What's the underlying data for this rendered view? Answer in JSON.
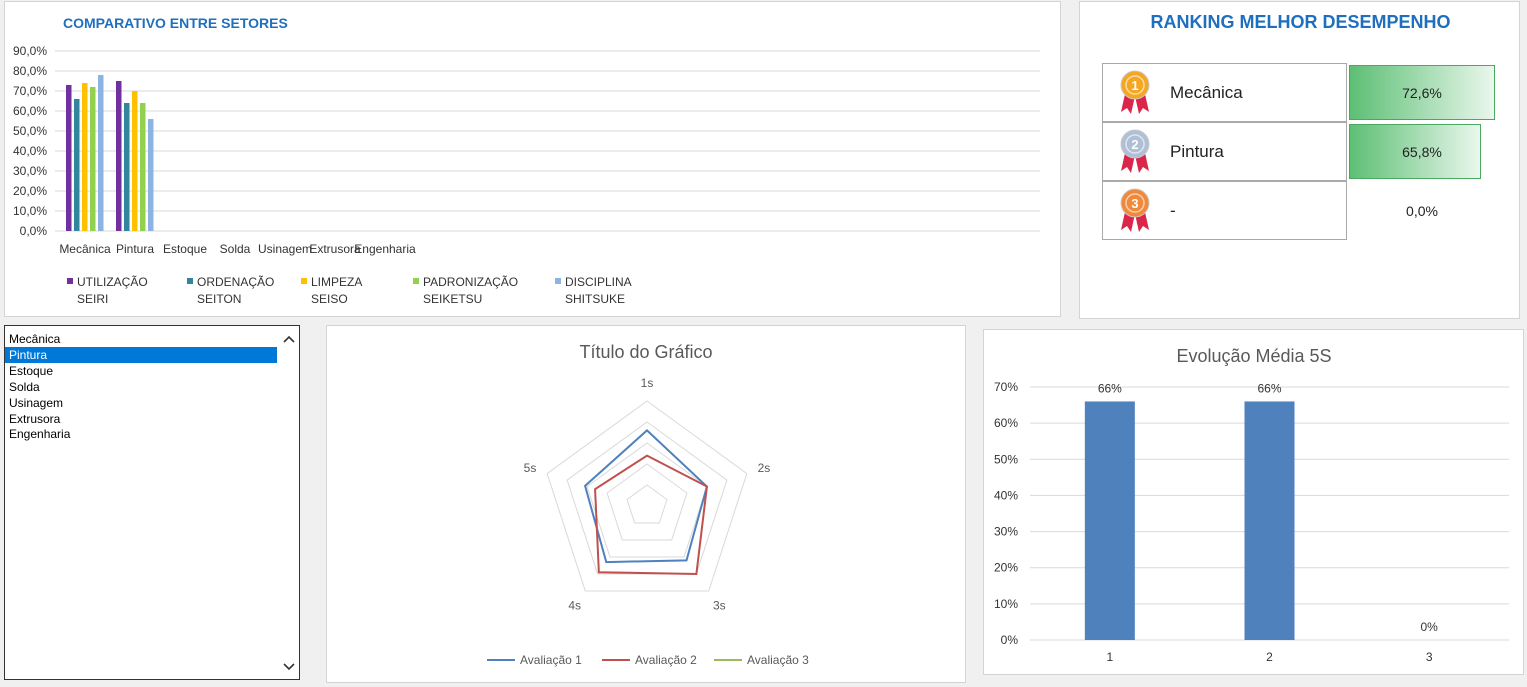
{
  "comparativo": {
    "title": "COMPARATIVO ENTRE SETORES",
    "y_ticks": [
      "90,0%",
      "80,0%",
      "70,0%",
      "60,0%",
      "50,0%",
      "40,0%",
      "30,0%",
      "20,0%",
      "10,0%",
      "0,0%"
    ],
    "categories": [
      "Mecânica",
      "Pintura",
      "Estoque",
      "Solda",
      "Usinagem",
      "Extrusora",
      "Engenharia"
    ],
    "legend": [
      {
        "line1": "UTILIZAÇÃO",
        "line2": "SEIRI",
        "color": "#7030a0"
      },
      {
        "line1": "ORDENAÇÃO",
        "line2": "SEITON",
        "color": "#31859c"
      },
      {
        "line1": "LIMPEZA",
        "line2": "SEISO",
        "color": "#ffc000"
      },
      {
        "line1": "PADRONIZAÇÃO",
        "line2": "SEIKETSU",
        "color": "#92d050"
      },
      {
        "line1": "DISCIPLINA",
        "line2": "SHITSUKE",
        "color": "#8db3e2"
      }
    ]
  },
  "chart_data": [
    {
      "type": "bar",
      "title": "COMPARATIVO ENTRE SETORES",
      "categories": [
        "Mecânica",
        "Pintura",
        "Estoque",
        "Solda",
        "Usinagem",
        "Extrusora",
        "Engenharia"
      ],
      "ylim": [
        0,
        90
      ],
      "series": [
        {
          "name": "UTILIZAÇÃO SEIRI",
          "values": [
            73,
            75,
            0,
            0,
            0,
            0,
            0
          ]
        },
        {
          "name": "ORDENAÇÃO SEITON",
          "values": [
            66,
            64,
            0,
            0,
            0,
            0,
            0
          ]
        },
        {
          "name": "LIMPEZA SEISO",
          "values": [
            74,
            70,
            0,
            0,
            0,
            0,
            0
          ]
        },
        {
          "name": "PADRONIZAÇÃO SEIKETSU",
          "values": [
            72,
            64,
            0,
            0,
            0,
            0,
            0
          ]
        },
        {
          "name": "DISCIPLINA SHITSUKE",
          "values": [
            78,
            56,
            0,
            0,
            0,
            0,
            0
          ]
        }
      ]
    },
    {
      "type": "radar",
      "title": "Título do Gráfico",
      "axes": [
        "1s",
        "2s",
        "3s",
        "4s",
        "5s"
      ],
      "rmax": 5,
      "series": [
        {
          "name": "Avaliação 1",
          "color": "#4f81bd",
          "values": [
            3.6,
            3.0,
            3.2,
            3.3,
            3.1
          ]
        },
        {
          "name": "Avaliação 2",
          "color": "#c0504d",
          "values": [
            2.4,
            3.0,
            4.0,
            3.9,
            2.6
          ]
        },
        {
          "name": "Avaliação 3",
          "color": "#9bbb59",
          "values": [
            0,
            0,
            0,
            0,
            0
          ]
        }
      ]
    },
    {
      "type": "bar",
      "title": "Evolução Média  5S",
      "categories": [
        "1",
        "2",
        "3"
      ],
      "values": [
        66,
        66,
        0
      ],
      "data_labels": [
        "66%",
        "66%",
        "0%"
      ],
      "y_ticks": [
        "70%",
        "60%",
        "50%",
        "40%",
        "30%",
        "20%",
        "10%",
        "0%"
      ],
      "ylim": [
        0,
        70
      ]
    }
  ],
  "ranking": {
    "title": "RANKING MELHOR DESEMPENHO",
    "rows": [
      {
        "name": "Mecânica",
        "value": "72,6%",
        "fraction": 0.726,
        "medal": "#f5a623",
        "medal_ribbon": "#d9264a"
      },
      {
        "name": "Pintura",
        "value": "65,8%",
        "fraction": 0.658,
        "medal": "#aebfd6",
        "medal_ribbon": "#d9264a"
      },
      {
        "name": "-",
        "value": "0,0%",
        "fraction": 0,
        "medal": "#f0893a",
        "medal_ribbon": "#d9264a"
      }
    ]
  },
  "listbox": {
    "items": [
      "Mecânica",
      "Pintura",
      "Estoque",
      "Solda",
      "Usinagem",
      "Extrusora",
      "Engenharia"
    ],
    "selected": "Pintura"
  }
}
